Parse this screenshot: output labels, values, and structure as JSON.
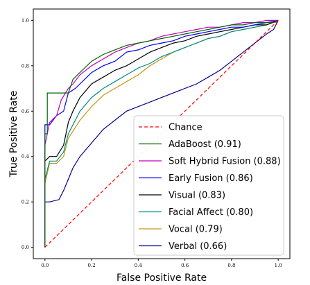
{
  "chart_data": {
    "type": "line",
    "title": "",
    "xlabel": "False Positive Rate",
    "ylabel": "True Positive Rate",
    "xlim": [
      -0.05,
      1.05
    ],
    "ylim": [
      -0.05,
      1.05
    ],
    "x_ticks": [
      "0.0",
      "0.2",
      "0.4",
      "0.6",
      "0.8",
      "1.0"
    ],
    "y_ticks": [
      "0.0",
      "0.2",
      "0.4",
      "0.6",
      "0.8",
      "1.0"
    ],
    "grid": false,
    "legend_position": "lower right",
    "series": [
      {
        "name": "Chance",
        "color": "#ff0000",
        "dash": "dashed",
        "x": [
          0,
          1
        ],
        "y": [
          0,
          1
        ]
      },
      {
        "name": "AdaBoost (0.91)",
        "color": "#006400",
        "dash": "solid",
        "x": [
          0,
          0,
          0.01,
          0.01,
          0.1,
          0.12,
          0.15,
          0.2,
          0.25,
          0.3,
          0.35,
          0.4,
          0.45,
          0.5,
          0.55,
          0.6,
          0.65,
          0.7,
          0.75,
          0.8,
          0.85,
          0.9,
          0.95,
          0.98,
          1.0
        ],
        "y": [
          0,
          0.5,
          0.5,
          0.68,
          0.68,
          0.74,
          0.77,
          0.82,
          0.85,
          0.87,
          0.89,
          0.9,
          0.91,
          0.92,
          0.93,
          0.94,
          0.95,
          0.96,
          0.97,
          0.98,
          0.98,
          0.99,
          0.99,
          0.99,
          1.0
        ]
      },
      {
        "name": "Soft Hybrid Fusion (0.88)",
        "color": "#c000c0",
        "dash": "solid",
        "x": [
          0,
          0,
          0.02,
          0.05,
          0.07,
          0.1,
          0.12,
          0.15,
          0.2,
          0.25,
          0.3,
          0.35,
          0.4,
          0.45,
          0.5,
          0.55,
          0.6,
          0.65,
          0.7,
          0.75,
          0.8,
          0.85,
          0.9,
          0.95,
          1.0
        ],
        "y": [
          0,
          0.45,
          0.55,
          0.58,
          0.65,
          0.7,
          0.72,
          0.76,
          0.8,
          0.83,
          0.86,
          0.88,
          0.9,
          0.91,
          0.93,
          0.94,
          0.95,
          0.96,
          0.97,
          0.97,
          0.98,
          0.99,
          0.99,
          1.0,
          1.0
        ]
      },
      {
        "name": "Early Fusion (0.86)",
        "color": "#0000ee",
        "dash": "solid",
        "x": [
          0,
          0,
          0.02,
          0.05,
          0.08,
          0.1,
          0.13,
          0.15,
          0.2,
          0.25,
          0.3,
          0.35,
          0.4,
          0.45,
          0.5,
          0.55,
          0.6,
          0.65,
          0.7,
          0.75,
          0.8,
          0.85,
          0.9,
          0.95,
          1.0
        ],
        "y": [
          0,
          0.54,
          0.54,
          0.58,
          0.6,
          0.68,
          0.7,
          0.72,
          0.77,
          0.8,
          0.82,
          0.86,
          0.87,
          0.89,
          0.9,
          0.91,
          0.93,
          0.94,
          0.95,
          0.96,
          0.97,
          0.97,
          0.98,
          0.99,
          1.0
        ]
      },
      {
        "name": "Visual (0.83)",
        "color": "#000000",
        "dash": "solid",
        "x": [
          0,
          0,
          0.02,
          0.05,
          0.08,
          0.1,
          0.12,
          0.15,
          0.2,
          0.25,
          0.3,
          0.35,
          0.4,
          0.45,
          0.5,
          0.55,
          0.6,
          0.65,
          0.7,
          0.75,
          0.8,
          0.85,
          0.9,
          0.95,
          1.0
        ],
        "y": [
          0,
          0.38,
          0.4,
          0.4,
          0.45,
          0.55,
          0.6,
          0.66,
          0.72,
          0.75,
          0.78,
          0.8,
          0.83,
          0.86,
          0.88,
          0.9,
          0.91,
          0.93,
          0.94,
          0.95,
          0.96,
          0.97,
          0.98,
          0.98,
          1.0
        ]
      },
      {
        "name": "Facial Affect (0.80)",
        "color": "#008b8b",
        "dash": "solid",
        "x": [
          0,
          0,
          0.02,
          0.05,
          0.08,
          0.1,
          0.15,
          0.2,
          0.25,
          0.3,
          0.35,
          0.4,
          0.45,
          0.5,
          0.55,
          0.6,
          0.65,
          0.7,
          0.75,
          0.8,
          0.85,
          0.9,
          0.95,
          1.0
        ],
        "y": [
          0,
          0.3,
          0.38,
          0.38,
          0.42,
          0.5,
          0.6,
          0.66,
          0.7,
          0.73,
          0.76,
          0.79,
          0.81,
          0.84,
          0.86,
          0.88,
          0.9,
          0.92,
          0.93,
          0.95,
          0.96,
          0.97,
          0.98,
          1.0
        ]
      },
      {
        "name": "Vocal (0.79)",
        "color": "#c8960c",
        "dash": "solid",
        "x": [
          0,
          0,
          0.02,
          0.05,
          0.08,
          0.1,
          0.15,
          0.2,
          0.25,
          0.3,
          0.35,
          0.4,
          0.45,
          0.5,
          0.55,
          0.6,
          0.65,
          0.7,
          0.75,
          0.8,
          0.85,
          0.9,
          0.95,
          1.0
        ],
        "y": [
          0,
          0.28,
          0.37,
          0.37,
          0.4,
          0.48,
          0.56,
          0.62,
          0.67,
          0.7,
          0.73,
          0.76,
          0.8,
          0.83,
          0.86,
          0.88,
          0.9,
          0.92,
          0.93,
          0.95,
          0.96,
          0.97,
          0.98,
          1.0
        ]
      },
      {
        "name": "Verbal (0.66)",
        "color": "#00008b",
        "dash": "solid",
        "x": [
          0,
          0,
          0.02,
          0.06,
          0.08,
          0.1,
          0.12,
          0.15,
          0.2,
          0.25,
          0.3,
          0.35,
          0.4,
          0.45,
          0.5,
          0.55,
          0.6,
          0.65,
          0.7,
          0.75,
          0.8,
          0.85,
          0.9,
          0.95,
          0.98,
          1.0
        ],
        "y": [
          0,
          0.2,
          0.2,
          0.21,
          0.25,
          0.3,
          0.35,
          0.4,
          0.46,
          0.52,
          0.56,
          0.6,
          0.62,
          0.64,
          0.66,
          0.68,
          0.7,
          0.72,
          0.75,
          0.78,
          0.82,
          0.86,
          0.9,
          0.94,
          0.96,
          1.0
        ]
      }
    ]
  }
}
